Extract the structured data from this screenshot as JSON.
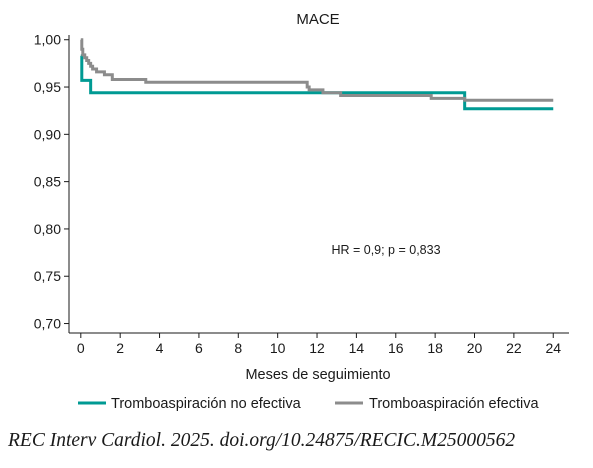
{
  "chart_data": {
    "type": "line",
    "step": true,
    "title": "MACE",
    "xlabel": "Meses de seguimiento",
    "ylabel": "",
    "xlim": [
      -0.6,
      24.8
    ],
    "ylim": [
      0.69,
      1.005
    ],
    "x_ticks": [
      0,
      2,
      4,
      6,
      8,
      10,
      12,
      14,
      16,
      18,
      20,
      22,
      24
    ],
    "y_ticks": [
      0.7,
      0.75,
      0.8,
      0.85,
      0.9,
      0.95,
      1.0
    ],
    "x_tick_labels": [
      "0",
      "2",
      "4",
      "6",
      "8",
      "10",
      "12",
      "14",
      "16",
      "18",
      "20",
      "22",
      "24"
    ],
    "y_tick_labels": [
      "0,70",
      "0,75",
      "0,80",
      "0,85",
      "0,90",
      "0,95",
      "1,00"
    ],
    "annotation": "HR = 0,9; p = 0,833",
    "legend_position": "bottom",
    "series": [
      {
        "name": "Tromboaspiración no efectiva",
        "color": "#009a93",
        "x": [
          0,
          0.05,
          0.5,
          19.5,
          24
        ],
        "y": [
          0.983,
          0.957,
          0.944,
          0.927,
          0.927
        ]
      },
      {
        "name": "Tromboaspiración efectiva",
        "color": "#8c8c8c",
        "x": [
          0,
          0.05,
          0.1,
          0.2,
          0.3,
          0.4,
          0.5,
          0.6,
          0.8,
          1.2,
          1.6,
          3.3,
          11.5,
          11.6,
          12.3,
          13.2,
          17.8,
          19.5,
          24
        ],
        "y": [
          1.0,
          0.99,
          0.984,
          0.981,
          0.978,
          0.975,
          0.972,
          0.969,
          0.966,
          0.963,
          0.958,
          0.955,
          0.95,
          0.947,
          0.944,
          0.941,
          0.938,
          0.936,
          0.936
        ]
      }
    ]
  },
  "citation": "REC Interv Cardiol. 2025. doi.org/10.24875/RECIC.M25000562"
}
